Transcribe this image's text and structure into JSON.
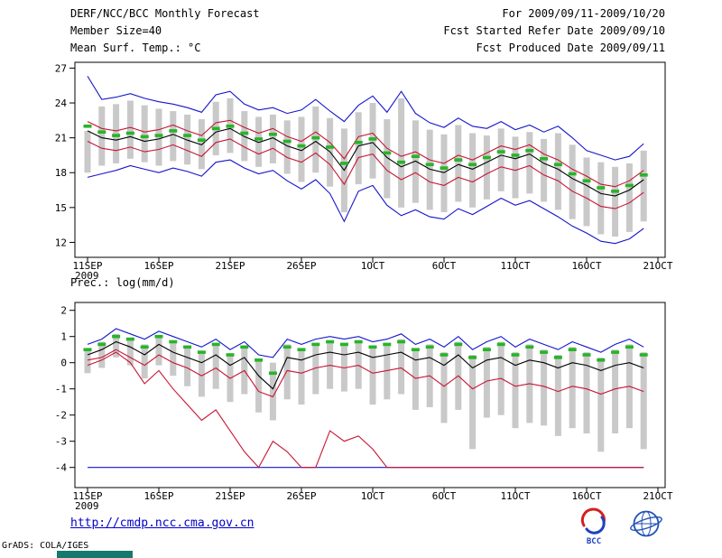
{
  "header": {
    "title": "DERF/NCC/BCC Monthly Forecast",
    "member_size": "Member Size=40",
    "for_range": "For 2009/09/11-2009/10/20",
    "refer_date": "Fcst Started Refer Date 2009/09/10",
    "produced_date": "Fcst Produced Date 2009/09/11"
  },
  "footer": {
    "url": "http://cmdp.ncc.cma.gov.cn",
    "credit": "GrADS: COLA/IGES",
    "bcc_label": "BCC"
  },
  "colors": {
    "blue": "#1414cc",
    "red": "#c81432",
    "black": "#000000",
    "green": "#28b428",
    "bar_gray": "#c9c9c9"
  },
  "chart_data": [
    {
      "type": "line",
      "title": "Mean Surf. Temp.: °C",
      "ylabel": "°C",
      "xlabel": "",
      "ylim": [
        12,
        27
      ],
      "yticks": [
        27,
        24,
        21,
        18,
        15,
        12
      ],
      "x_year": "2009",
      "xticks": [
        {
          "label": "11SEP",
          "day": 1
        },
        {
          "label": "16SEP",
          "day": 6
        },
        {
          "label": "21SEP",
          "day": 11
        },
        {
          "label": "26SEP",
          "day": 16
        },
        {
          "label": "1OCT",
          "day": 21
        },
        {
          "label": "6OCT",
          "day": 26
        },
        {
          "label": "11OCT",
          "day": 31
        },
        {
          "label": "16OCT",
          "day": 36
        },
        {
          "label": "21OCT",
          "day": 41
        }
      ],
      "bars": {
        "color": "#c9c9c9",
        "low": [
          18.0,
          18.6,
          18.8,
          19.2,
          18.9,
          18.6,
          19.0,
          18.7,
          18.3,
          19.5,
          19.7,
          19.0,
          18.5,
          18.8,
          17.9,
          17.2,
          18.0,
          16.8,
          14.6,
          17.0,
          17.5,
          15.8,
          15.0,
          15.4,
          14.8,
          14.6,
          15.5,
          15.0,
          15.7,
          16.4,
          15.8,
          16.2,
          15.5,
          14.8,
          14.0,
          13.4,
          12.7,
          12.5,
          12.9,
          13.8
        ],
        "high": [
          21.6,
          23.7,
          23.9,
          24.2,
          23.8,
          23.5,
          23.3,
          23.0,
          22.6,
          24.1,
          24.4,
          23.3,
          22.8,
          23.0,
          22.5,
          22.8,
          23.7,
          22.7,
          21.8,
          23.2,
          24.0,
          22.6,
          24.4,
          22.5,
          21.7,
          21.3,
          22.1,
          21.4,
          21.2,
          21.8,
          21.1,
          21.5,
          20.9,
          21.4,
          20.4,
          19.3,
          18.9,
          18.5,
          18.8,
          19.9
        ]
      },
      "series": [
        {
          "name": "max",
          "color": "#1414cc",
          "style": "line",
          "values": [
            26.3,
            24.3,
            24.5,
            24.8,
            24.4,
            24.1,
            23.9,
            23.6,
            23.2,
            24.7,
            25.0,
            23.9,
            23.4,
            23.6,
            23.1,
            23.4,
            24.3,
            23.3,
            22.4,
            23.8,
            24.6,
            23.2,
            25.0,
            23.1,
            22.3,
            21.9,
            22.7,
            22.0,
            21.8,
            22.4,
            21.7,
            22.1,
            21.5,
            22.0,
            21.0,
            19.9,
            19.5,
            19.1,
            19.4,
            20.5
          ]
        },
        {
          "name": "min",
          "color": "#1414cc",
          "style": "line",
          "values": [
            17.6,
            17.9,
            18.2,
            18.6,
            18.3,
            18.0,
            18.4,
            18.1,
            17.7,
            18.9,
            19.1,
            18.4,
            17.9,
            18.2,
            17.3,
            16.6,
            17.4,
            16.2,
            13.8,
            16.4,
            16.9,
            15.2,
            14.3,
            14.8,
            14.2,
            14.0,
            14.9,
            14.4,
            15.1,
            15.8,
            15.2,
            15.6,
            14.9,
            14.2,
            13.4,
            12.8,
            12.1,
            11.9,
            12.3,
            13.2
          ]
        },
        {
          "name": "upper",
          "color": "#c81432",
          "style": "line",
          "values": [
            22.4,
            21.8,
            21.6,
            21.9,
            21.5,
            21.7,
            22.1,
            21.6,
            21.2,
            22.3,
            22.5,
            21.9,
            21.4,
            21.8,
            21.1,
            20.7,
            21.5,
            20.6,
            19.2,
            21.1,
            21.4,
            20.1,
            19.4,
            19.8,
            19.1,
            18.8,
            19.5,
            19.1,
            19.7,
            20.3,
            20.0,
            20.4,
            19.6,
            19.1,
            18.3,
            17.7,
            17.0,
            16.8,
            17.3,
            18.2
          ]
        },
        {
          "name": "lower",
          "color": "#c81432",
          "style": "line",
          "values": [
            20.7,
            20.1,
            19.9,
            20.2,
            19.8,
            20.0,
            20.4,
            19.9,
            19.4,
            20.6,
            20.9,
            20.2,
            19.6,
            20.1,
            19.3,
            18.9,
            19.7,
            18.7,
            17.0,
            19.3,
            19.6,
            18.2,
            17.4,
            18.0,
            17.2,
            16.9,
            17.6,
            17.2,
            17.9,
            18.5,
            18.2,
            18.6,
            17.8,
            17.3,
            16.4,
            15.8,
            15.1,
            14.9,
            15.4,
            16.3
          ]
        },
        {
          "name": "mean",
          "color": "#000000",
          "style": "line",
          "values": [
            21.6,
            21.0,
            20.8,
            21.1,
            20.7,
            20.9,
            21.3,
            20.8,
            20.4,
            21.5,
            21.8,
            21.1,
            20.6,
            21.0,
            20.3,
            19.9,
            20.7,
            19.8,
            18.2,
            20.3,
            20.6,
            19.3,
            18.5,
            19.0,
            18.3,
            18.0,
            18.7,
            18.3,
            18.9,
            19.5,
            19.2,
            19.6,
            18.8,
            18.3,
            17.5,
            16.9,
            16.2,
            16.0,
            16.5,
            17.4
          ]
        },
        {
          "name": "green-dashed",
          "color": "#28b428",
          "style": "dash",
          "values": [
            22.0,
            21.5,
            21.2,
            21.4,
            21.1,
            21.2,
            21.6,
            21.2,
            20.8,
            21.8,
            22.0,
            21.4,
            20.9,
            21.3,
            20.7,
            20.3,
            21.0,
            20.2,
            18.8,
            20.6,
            20.9,
            19.7,
            18.9,
            19.4,
            18.7,
            18.4,
            19.1,
            18.7,
            19.3,
            19.8,
            19.5,
            19.9,
            19.2,
            18.7,
            17.9,
            17.3,
            16.7,
            16.4,
            16.9,
            17.8
          ]
        }
      ]
    },
    {
      "type": "line",
      "title": "Prec.: log(mm/d)",
      "ylabel": "log(mm/d)",
      "xlabel": "",
      "ylim": [
        -4,
        2
      ],
      "yticks": [
        2,
        1,
        0,
        -1,
        -2,
        -3,
        -4
      ],
      "x_year": "2009",
      "xticks": [
        {
          "label": "11SEP",
          "day": 1
        },
        {
          "label": "16SEP",
          "day": 6
        },
        {
          "label": "21SEP",
          "day": 11
        },
        {
          "label": "26SEP",
          "day": 16
        },
        {
          "label": "1OCT",
          "day": 21
        },
        {
          "label": "6OCT",
          "day": 26
        },
        {
          "label": "11OCT",
          "day": 31
        },
        {
          "label": "16OCT",
          "day": 36
        },
        {
          "label": "21OCT",
          "day": 41
        }
      ],
      "bars": {
        "color": "#c9c9c9",
        "low": [
          -0.4,
          -0.2,
          0.2,
          -0.1,
          -0.6,
          -0.1,
          -0.5,
          -0.9,
          -1.3,
          -1.0,
          -1.5,
          -1.2,
          -1.9,
          -2.2,
          -1.4,
          -1.6,
          -1.2,
          -1.0,
          -1.1,
          -1.0,
          -1.6,
          -1.4,
          -1.2,
          -1.8,
          -1.7,
          -2.3,
          -1.8,
          -3.3,
          -2.1,
          -2.0,
          -2.5,
          -2.3,
          -2.4,
          -2.8,
          -2.5,
          -2.7,
          -3.4,
          -2.7,
          -2.5,
          -3.3
        ],
        "high": [
          0.5,
          0.8,
          1.1,
          0.9,
          0.7,
          1.0,
          0.8,
          0.6,
          0.4,
          0.7,
          0.3,
          0.6,
          0.1,
          0.0,
          0.7,
          0.5,
          0.7,
          0.8,
          0.7,
          0.8,
          0.6,
          0.7,
          0.9,
          0.5,
          0.7,
          0.4,
          0.8,
          0.3,
          0.6,
          0.8,
          0.4,
          0.7,
          0.5,
          0.3,
          0.6,
          0.4,
          0.2,
          0.5,
          0.7,
          0.4
        ]
      },
      "series": [
        {
          "name": "max",
          "color": "#1414cc",
          "style": "line",
          "values": [
            0.7,
            0.9,
            1.3,
            1.1,
            0.9,
            1.2,
            1.0,
            0.8,
            0.6,
            0.9,
            0.5,
            0.8,
            0.3,
            0.2,
            0.9,
            0.7,
            0.9,
            1.0,
            0.9,
            1.0,
            0.8,
            0.9,
            1.1,
            0.7,
            0.9,
            0.6,
            1.0,
            0.5,
            0.8,
            1.0,
            0.6,
            0.9,
            0.7,
            0.5,
            0.8,
            0.6,
            0.4,
            0.7,
            0.9,
            0.6
          ]
        },
        {
          "name": "min",
          "color": "#1414cc",
          "style": "line",
          "values": [
            -4.0,
            -4.0,
            -4.0,
            -4.0,
            -4.0,
            -4.0,
            -4.0,
            -4.0,
            -4.0,
            -4.0,
            -4.0,
            -4.0,
            -4.0,
            -4.0,
            -4.0,
            -4.0,
            -4.0,
            -4.0,
            -4.0,
            -4.0,
            -4.0,
            -4.0,
            -4.0,
            -4.0,
            -4.0,
            -4.0,
            -4.0,
            -4.0,
            -4.0,
            -4.0,
            -4.0,
            -4.0,
            -4.0,
            -4.0,
            -4.0,
            -4.0,
            -4.0,
            -4.0,
            -4.0,
            -4.0
          ]
        },
        {
          "name": "upper",
          "color": "#c81432",
          "style": "line",
          "values": [
            0.1,
            0.2,
            0.5,
            0.2,
            -0.1,
            0.3,
            0.0,
            -0.2,
            -0.5,
            -0.2,
            -0.6,
            -0.3,
            -1.1,
            -1.3,
            -0.3,
            -0.4,
            -0.2,
            -0.1,
            -0.2,
            -0.1,
            -0.4,
            -0.3,
            -0.2,
            -0.6,
            -0.5,
            -0.9,
            -0.5,
            -1.0,
            -0.7,
            -0.6,
            -0.9,
            -0.8,
            -0.9,
            -1.1,
            -0.9,
            -1.0,
            -1.2,
            -1.0,
            -0.9,
            -1.1
          ]
        },
        {
          "name": "lower",
          "color": "#c81432",
          "style": "line",
          "values": [
            -0.1,
            0.1,
            0.4,
            0.0,
            -0.8,
            -0.3,
            -1.0,
            -1.6,
            -2.2,
            -1.8,
            -2.6,
            -3.4,
            -4.0,
            -3.0,
            -3.4,
            -4.0,
            -4.0,
            -2.6,
            -3.0,
            -2.8,
            -3.3,
            -4.0,
            -4.0,
            -4.0,
            -4.0,
            -4.0,
            -4.0,
            -4.0,
            -4.0,
            -4.0,
            -4.0,
            -4.0,
            -4.0,
            -4.0,
            -4.0,
            -4.0,
            -4.0,
            -4.0,
            -4.0,
            -4.0
          ]
        },
        {
          "name": "mean",
          "color": "#000000",
          "style": "line",
          "values": [
            0.3,
            0.5,
            0.8,
            0.6,
            0.3,
            0.7,
            0.4,
            0.2,
            0.0,
            0.3,
            -0.1,
            0.2,
            -0.5,
            -1.0,
            0.2,
            0.1,
            0.3,
            0.4,
            0.3,
            0.4,
            0.2,
            0.3,
            0.4,
            0.1,
            0.2,
            -0.1,
            0.3,
            -0.2,
            0.1,
            0.2,
            -0.1,
            0.1,
            0.0,
            -0.2,
            0.0,
            -0.1,
            -0.3,
            -0.1,
            0.0,
            -0.2
          ]
        },
        {
          "name": "green-dashed",
          "color": "#28b428",
          "style": "dash",
          "values": [
            0.5,
            0.7,
            1.0,
            0.9,
            0.6,
            1.0,
            0.8,
            0.6,
            0.4,
            0.7,
            0.3,
            0.6,
            0.1,
            -0.4,
            0.6,
            0.5,
            0.7,
            0.8,
            0.7,
            0.8,
            0.6,
            0.7,
            0.8,
            0.5,
            0.6,
            0.3,
            0.7,
            0.2,
            0.5,
            0.7,
            0.3,
            0.6,
            0.4,
            0.2,
            0.5,
            0.3,
            0.1,
            0.4,
            0.6,
            0.3
          ]
        }
      ]
    }
  ]
}
